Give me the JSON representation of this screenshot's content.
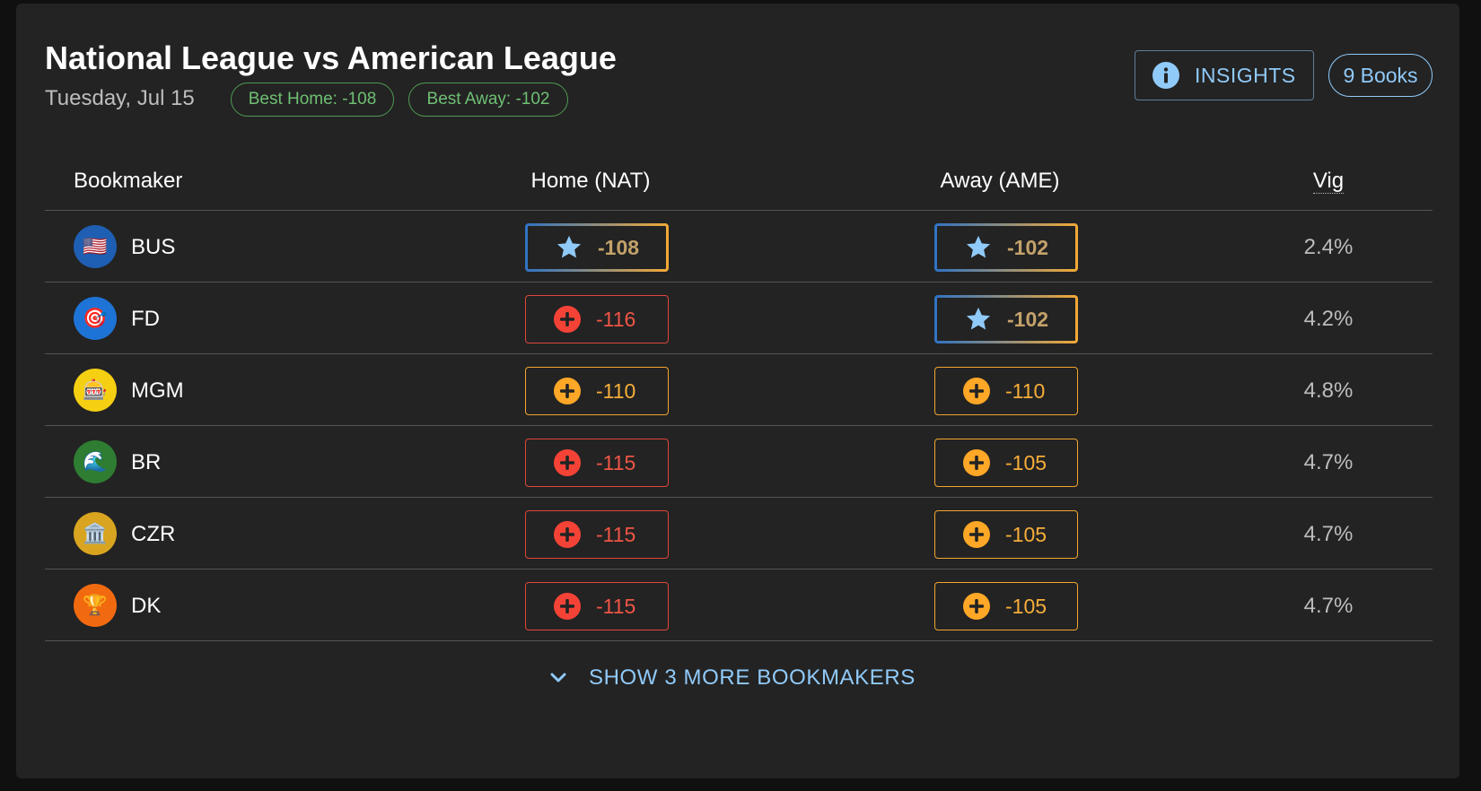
{
  "header": {
    "title": "National League vs American League",
    "date": "Tuesday, Jul 15",
    "best_home": "Best Home: -108",
    "best_away": "Best Away: -102",
    "insights_label": "INSIGHTS",
    "books_count": "9 Books"
  },
  "table": {
    "columns": {
      "bookmaker": "Bookmaker",
      "home": "Home (NAT)",
      "away": "Away (AME)",
      "vig": "Vig"
    },
    "rows": [
      {
        "logo": "🇺🇸",
        "logo_color": "#1e5fb3",
        "name": "BUS",
        "home": "-108",
        "home_status": "best",
        "away": "-102",
        "away_status": "best",
        "vig": "2.4%"
      },
      {
        "logo": "🎯",
        "logo_color": "#1e74d6",
        "name": "FD",
        "home": "-116",
        "home_status": "red",
        "away": "-102",
        "away_status": "best",
        "vig": "4.2%"
      },
      {
        "logo": "🎰",
        "logo_color": "#f5cf12",
        "name": "MGM",
        "home": "-110",
        "home_status": "orange",
        "away": "-110",
        "away_status": "orange",
        "vig": "4.8%"
      },
      {
        "logo": "🌊",
        "logo_color": "#2e7d32",
        "name": "BR",
        "home": "-115",
        "home_status": "red",
        "away": "-105",
        "away_status": "orange",
        "vig": "4.7%"
      },
      {
        "logo": "🏛️",
        "logo_color": "#d9a520",
        "name": "CZR",
        "home": "-115",
        "home_status": "red",
        "away": "-105",
        "away_status": "orange",
        "vig": "4.7%"
      },
      {
        "logo": "🏆",
        "logo_color": "#f26a10",
        "name": "DK",
        "home": "-115",
        "home_status": "red",
        "away": "-105",
        "away_status": "orange",
        "vig": "4.7%"
      }
    ]
  },
  "icons": {
    "best": "star-icon",
    "other": "plus-circle-icon",
    "insights": "info-icon",
    "expand": "chevron-down-icon"
  },
  "colors": {
    "best_star": "#90caf9",
    "red": "#f44336",
    "orange": "#ffa726",
    "accent": "#90caf9",
    "chip_green": "#66bb6a"
  },
  "footer": {
    "show_more": "SHOW 3 MORE BOOKMAKERS"
  }
}
